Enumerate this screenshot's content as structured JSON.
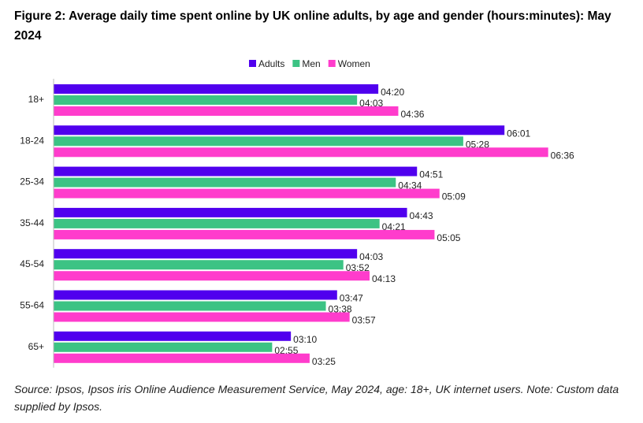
{
  "chart_data": {
    "type": "bar",
    "orientation": "horizontal",
    "title": "Figure 2: Average daily time spent online by UK online adults, by age and gender (hours:minutes): May 2024",
    "categories": [
      "18+",
      "18-24",
      "25-34",
      "35-44",
      "45-54",
      "55-64",
      "65+"
    ],
    "series": [
      {
        "name": "Adults",
        "color": "#5000ee",
        "values": [
          "04:20",
          "06:01",
          "04:51",
          "04:43",
          "04:03",
          "03:47",
          "03:10"
        ]
      },
      {
        "name": "Men",
        "color": "#3cc384",
        "values": [
          "04:03",
          "05:28",
          "04:34",
          "04:21",
          "03:52",
          "03:38",
          "02:55"
        ]
      },
      {
        "name": "Women",
        "color": "#ff3ccc",
        "values": [
          "04:36",
          "06:36",
          "05:09",
          "05:05",
          "04:13",
          "03:57",
          "03:25"
        ]
      }
    ],
    "xlabel": "",
    "ylabel": "",
    "grid": false,
    "legend": "top",
    "source": "Source: Ipsos, Ipsos iris Online Audience Measurement Service, May 2024, age: 18+, UK internet users. Note: Custom data supplied by Ipsos."
  }
}
